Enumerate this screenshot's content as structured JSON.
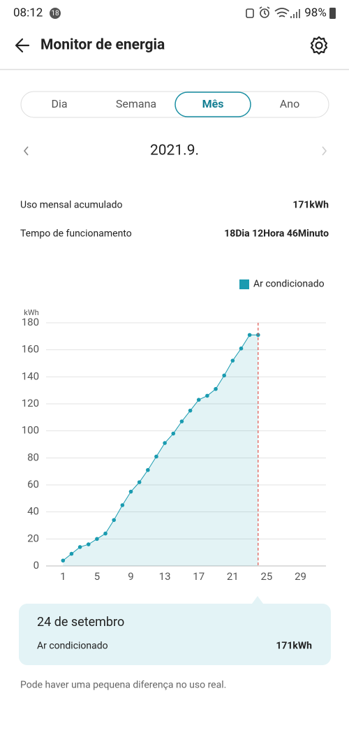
{
  "status_bar": {
    "time": "08:12",
    "badge": "18",
    "battery": "98%"
  },
  "header": {
    "title": "Monitor de energia"
  },
  "tabs": {
    "items": [
      "Dia",
      "Semana",
      "Mês",
      "Ano"
    ],
    "selected": 2
  },
  "period": "2021.9.",
  "summary": [
    [
      "Uso mensal acumulado",
      "171kWh"
    ],
    [
      "Tempo de funcionamento",
      "18Dia 12Hora 46Minuto"
    ]
  ],
  "chart_data": {
    "type": "line",
    "y_unit": "kWh",
    "x": [
      1,
      2,
      3,
      4,
      5,
      6,
      7,
      8,
      9,
      10,
      11,
      12,
      13,
      14,
      15,
      16,
      17,
      18,
      19,
      20,
      21,
      22,
      23,
      24
    ],
    "series": [
      {
        "name": "Ar condicionado",
        "color": "#1a9bb0",
        "values": [
          4,
          9,
          14,
          16,
          20,
          24,
          34,
          45,
          55,
          62,
          71,
          81,
          91,
          98,
          107,
          115,
          123,
          126,
          131,
          141,
          152,
          161,
          171,
          171
        ]
      }
    ],
    "xlim": [
      -1,
      32
    ],
    "ylim": [
      0,
      180
    ],
    "xticks": [
      1,
      5,
      9,
      13,
      17,
      21,
      25,
      29
    ],
    "yticks": [
      0,
      20,
      40,
      60,
      80,
      100,
      120,
      140,
      160,
      180
    ],
    "grid": true,
    "area": true,
    "marker_x": 24
  },
  "tooltip": {
    "title": "24 de setembro",
    "label": "Ar condicionado",
    "value": "171kWh"
  },
  "note": "Pode haver uma pequena diferença no uso real."
}
